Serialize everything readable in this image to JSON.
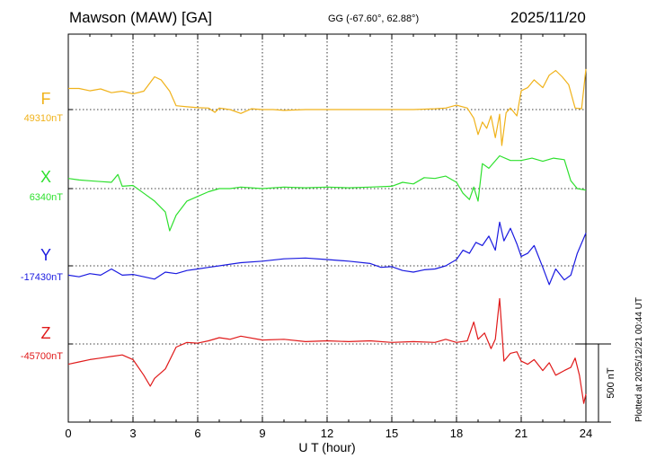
{
  "header": {
    "station": "Mawson (MAW)  [GA]",
    "coords": "GG (-67.60°,  62.88°)",
    "date": "2025/11/20"
  },
  "plotted_note": "Plotted at 2025/12/21 00:44 UT",
  "chart_data": {
    "type": "line",
    "xlabel": "U T (hour)",
    "xlim": [
      0,
      24
    ],
    "x_ticks": [
      "0",
      "3",
      "6",
      "9",
      "12",
      "15",
      "18",
      "21",
      "24"
    ],
    "scale_bar_label": "500 nT",
    "grid": true,
    "series": [
      {
        "name": "F",
        "baseline_label": "49310nT",
        "color": "#f0b21a",
        "x": [
          0,
          0.5,
          1,
          1.5,
          2,
          2.5,
          3,
          3.5,
          4,
          4.3,
          4.7,
          5,
          5.5,
          6,
          6.5,
          6.8,
          7,
          7.5,
          8,
          8.5,
          9,
          9.5,
          10,
          11,
          12,
          13,
          14,
          15,
          16,
          17,
          17.5,
          18,
          18.5,
          18.8,
          19,
          19.2,
          19.4,
          19.6,
          19.8,
          20,
          20.1,
          20.3,
          20.5,
          20.8,
          21,
          21.3,
          21.6,
          22,
          22.3,
          22.6,
          22.9,
          23.2,
          23.5,
          23.8,
          24
        ],
        "values": [
          135,
          135,
          120,
          132,
          108,
          118,
          100,
          118,
          210,
          190,
          118,
          25,
          18,
          12,
          10,
          -18,
          10,
          0,
          -25,
          5,
          0,
          0,
          -5,
          0,
          0,
          0,
          0,
          0,
          0,
          5,
          10,
          28,
          10,
          -55,
          -160,
          -80,
          -120,
          -40,
          -180,
          -30,
          -230,
          -20,
          10,
          -40,
          120,
          140,
          190,
          140,
          220,
          250,
          210,
          160,
          10,
          5,
          260
        ]
      },
      {
        "name": "X",
        "baseline_label": "6340nT",
        "color": "#2ee02e",
        "x": [
          0,
          0.5,
          1,
          1.5,
          2,
          2.3,
          2.5,
          3,
          3.5,
          4,
          4.5,
          4.7,
          5,
          5.5,
          6,
          6.5,
          7,
          7.5,
          8,
          9,
          10,
          11,
          12,
          13,
          14,
          15,
          15.5,
          16,
          16.5,
          17,
          17.5,
          18,
          18.3,
          18.6,
          18.8,
          19,
          19.2,
          19.5,
          20,
          20.5,
          21,
          21.5,
          22,
          22.5,
          23,
          23.3,
          23.6,
          24
        ],
        "values": [
          65,
          55,
          50,
          45,
          40,
          90,
          15,
          20,
          -30,
          -80,
          -150,
          -270,
          -170,
          -80,
          -50,
          -20,
          0,
          0,
          10,
          0,
          10,
          5,
          10,
          5,
          10,
          15,
          40,
          30,
          70,
          65,
          80,
          40,
          -30,
          -70,
          10,
          -80,
          160,
          130,
          210,
          180,
          180,
          195,
          175,
          195,
          185,
          50,
          0,
          -10
        ]
      },
      {
        "name": "Y",
        "baseline_label": "-17430nT",
        "color": "#1a1ae0",
        "x": [
          0,
          0.5,
          1,
          1.5,
          2,
          2.5,
          3,
          3.5,
          4,
          4.5,
          5,
          5.5,
          6,
          6.5,
          7,
          8,
          9,
          10,
          11,
          12,
          13,
          14,
          14.5,
          15,
          15.5,
          16,
          16.5,
          17,
          17.5,
          18,
          18.3,
          18.6,
          18.9,
          19.2,
          19.5,
          19.8,
          20,
          20.2,
          20.5,
          20.8,
          21,
          21.3,
          21.6,
          22,
          22.3,
          22.6,
          23,
          23.3,
          23.6,
          24
        ],
        "values": [
          -60,
          -70,
          -50,
          -60,
          -20,
          -60,
          -55,
          -70,
          -85,
          -40,
          -50,
          -30,
          -20,
          -10,
          0,
          20,
          30,
          45,
          50,
          40,
          30,
          15,
          -10,
          -5,
          -30,
          -40,
          -25,
          -20,
          0,
          40,
          100,
          80,
          150,
          130,
          190,
          100,
          280,
          160,
          240,
          140,
          60,
          80,
          130,
          -10,
          -120,
          -20,
          -90,
          -60,
          80,
          210
        ]
      },
      {
        "name": "Z",
        "baseline_label": "-45700nT",
        "color": "#e01a1a",
        "x": [
          0,
          0.5,
          1,
          1.5,
          2,
          2.5,
          3,
          3.5,
          3.8,
          4,
          4.5,
          5,
          5.5,
          6,
          6.5,
          7,
          7.5,
          8,
          9,
          10,
          11,
          12,
          13,
          14,
          15,
          16,
          17,
          17.5,
          18,
          18.5,
          18.8,
          19,
          19.3,
          19.6,
          19.8,
          20,
          20.2,
          20.5,
          20.8,
          21,
          21.3,
          21.6,
          22,
          22.3,
          22.6,
          23,
          23.3,
          23.5,
          23.7,
          23.9,
          24
        ],
        "values": [
          -130,
          -115,
          -100,
          -90,
          -80,
          -70,
          -100,
          -200,
          -270,
          -220,
          -160,
          -20,
          10,
          5,
          20,
          40,
          30,
          50,
          25,
          30,
          15,
          20,
          15,
          20,
          10,
          15,
          10,
          30,
          10,
          20,
          140,
          30,
          70,
          -30,
          30,
          290,
          -110,
          -60,
          -50,
          -110,
          -130,
          -100,
          -170,
          -120,
          -200,
          -170,
          -150,
          -90,
          -200,
          -380,
          -320
        ]
      }
    ]
  }
}
